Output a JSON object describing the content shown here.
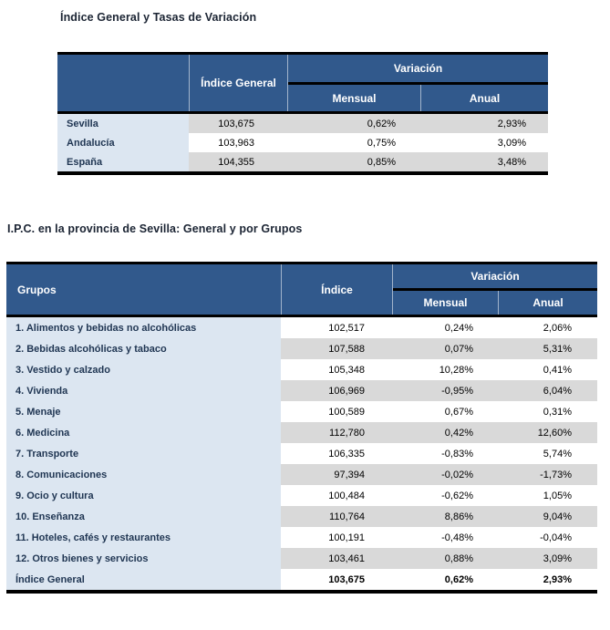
{
  "colors": {
    "header_blue": "#31598C",
    "label_blue_bg": "#DCE6F1",
    "stripe_gray": "#D9D9D9",
    "border_black": "#000000",
    "label_text": "#1F3552",
    "title_text": "#1B2433"
  },
  "table1": {
    "title": "Índice General y Tasas de Variación",
    "headers": {
      "indice_general": "Índice General",
      "variacion": "Variación",
      "mensual": "Mensual",
      "anual": "Anual"
    },
    "rows": [
      {
        "name": "Sevilla",
        "indice": "103,675",
        "mensual": "0,62%",
        "anual": "2,93%"
      },
      {
        "name": "Andalucía",
        "indice": "103,963",
        "mensual": "0,75%",
        "anual": "3,09%"
      },
      {
        "name": "España",
        "indice": "104,355",
        "mensual": "0,85%",
        "anual": "3,48%"
      }
    ]
  },
  "table2": {
    "title": "I.P.C. en la provincia de Sevilla: General y por Grupos",
    "headers": {
      "grupos": "Grupos",
      "indice": "Índice",
      "variacion": "Variación",
      "mensual": "Mensual",
      "anual": "Anual"
    },
    "rows": [
      {
        "name": "1. Alimentos y bebidas no alcohólicas",
        "indice": "102,517",
        "mensual": "0,24%",
        "anual": "2,06%"
      },
      {
        "name": "2. Bebidas alcohólicas y tabaco",
        "indice": "107,588",
        "mensual": "0,07%",
        "anual": "5,31%"
      },
      {
        "name": "3. Vestido y calzado",
        "indice": "105,348",
        "mensual": "10,28%",
        "anual": "0,41%"
      },
      {
        "name": "4. Vivienda",
        "indice": "106,969",
        "mensual": "-0,95%",
        "anual": "6,04%"
      },
      {
        "name": "5. Menaje",
        "indice": "100,589",
        "mensual": "0,67%",
        "anual": "0,31%"
      },
      {
        "name": "6. Medicina",
        "indice": "112,780",
        "mensual": "0,42%",
        "anual": "12,60%"
      },
      {
        "name": "7. Transporte",
        "indice": "106,335",
        "mensual": "-0,83%",
        "anual": "5,74%"
      },
      {
        "name": "8. Comunicaciones",
        "indice": "97,394",
        "mensual": "-0,02%",
        "anual": "-1,73%"
      },
      {
        "name": "9. Ocio y cultura",
        "indice": "100,484",
        "mensual": "-0,62%",
        "anual": "1,05%"
      },
      {
        "name": "10. Enseñanza",
        "indice": "110,764",
        "mensual": "8,86%",
        "anual": "9,04%"
      },
      {
        "name": "11. Hoteles, cafés y restaurantes",
        "indice": "100,191",
        "mensual": "-0,48%",
        "anual": "-0,04%"
      },
      {
        "name": "12. Otros bienes y servicios",
        "indice": "103,461",
        "mensual": "0,88%",
        "anual": "3,09%"
      },
      {
        "name": "Índice General",
        "indice": "103,675",
        "mensual": "0,62%",
        "anual": "2,93%"
      }
    ]
  }
}
